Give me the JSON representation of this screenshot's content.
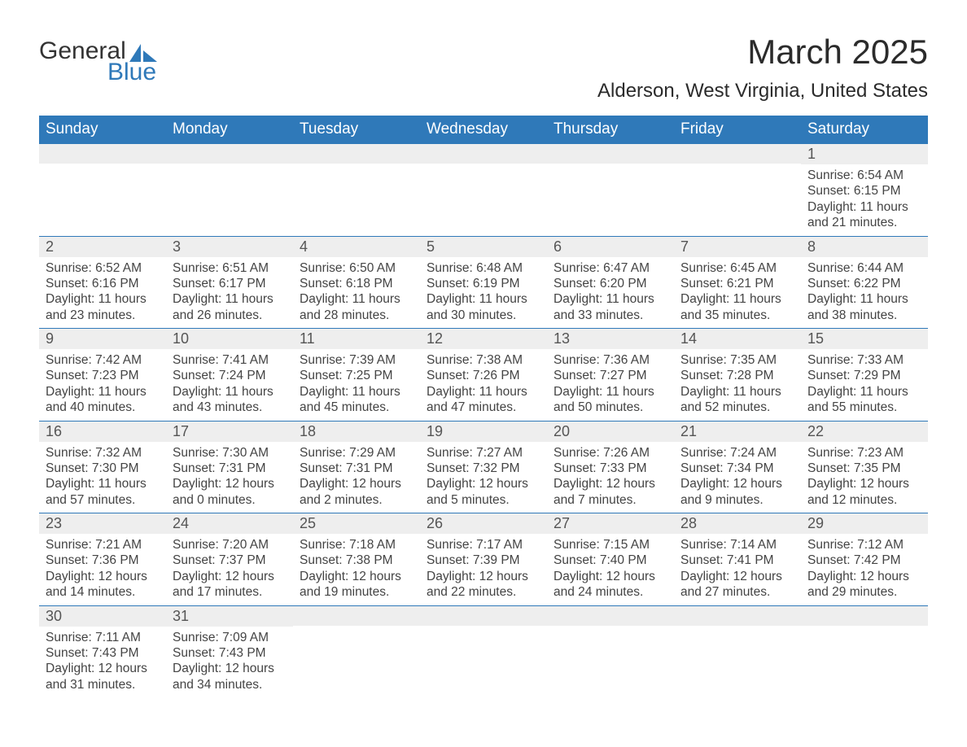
{
  "logo": {
    "text1": "General",
    "text2": "Blue",
    "accent": "#2f79b9"
  },
  "title": "March 2025",
  "location": "Alderson, West Virginia, United States",
  "colors": {
    "header_bg": "#2f79b9",
    "header_text": "#ffffff",
    "daynum_bg": "#eeeeee",
    "row_divider": "#2f79b9"
  },
  "columns": [
    "Sunday",
    "Monday",
    "Tuesday",
    "Wednesday",
    "Thursday",
    "Friday",
    "Saturday"
  ],
  "weeks": [
    [
      null,
      null,
      null,
      null,
      null,
      null,
      {
        "n": "1",
        "sr": "6:54 AM",
        "ss": "6:15 PM",
        "dh": "11",
        "dm": "21"
      }
    ],
    [
      {
        "n": "2",
        "sr": "6:52 AM",
        "ss": "6:16 PM",
        "dh": "11",
        "dm": "23"
      },
      {
        "n": "3",
        "sr": "6:51 AM",
        "ss": "6:17 PM",
        "dh": "11",
        "dm": "26"
      },
      {
        "n": "4",
        "sr": "6:50 AM",
        "ss": "6:18 PM",
        "dh": "11",
        "dm": "28"
      },
      {
        "n": "5",
        "sr": "6:48 AM",
        "ss": "6:19 PM",
        "dh": "11",
        "dm": "30"
      },
      {
        "n": "6",
        "sr": "6:47 AM",
        "ss": "6:20 PM",
        "dh": "11",
        "dm": "33"
      },
      {
        "n": "7",
        "sr": "6:45 AM",
        "ss": "6:21 PM",
        "dh": "11",
        "dm": "35"
      },
      {
        "n": "8",
        "sr": "6:44 AM",
        "ss": "6:22 PM",
        "dh": "11",
        "dm": "38"
      }
    ],
    [
      {
        "n": "9",
        "sr": "7:42 AM",
        "ss": "7:23 PM",
        "dh": "11",
        "dm": "40"
      },
      {
        "n": "10",
        "sr": "7:41 AM",
        "ss": "7:24 PM",
        "dh": "11",
        "dm": "43"
      },
      {
        "n": "11",
        "sr": "7:39 AM",
        "ss": "7:25 PM",
        "dh": "11",
        "dm": "45"
      },
      {
        "n": "12",
        "sr": "7:38 AM",
        "ss": "7:26 PM",
        "dh": "11",
        "dm": "47"
      },
      {
        "n": "13",
        "sr": "7:36 AM",
        "ss": "7:27 PM",
        "dh": "11",
        "dm": "50"
      },
      {
        "n": "14",
        "sr": "7:35 AM",
        "ss": "7:28 PM",
        "dh": "11",
        "dm": "52"
      },
      {
        "n": "15",
        "sr": "7:33 AM",
        "ss": "7:29 PM",
        "dh": "11",
        "dm": "55"
      }
    ],
    [
      {
        "n": "16",
        "sr": "7:32 AM",
        "ss": "7:30 PM",
        "dh": "11",
        "dm": "57"
      },
      {
        "n": "17",
        "sr": "7:30 AM",
        "ss": "7:31 PM",
        "dh": "12",
        "dm": "0"
      },
      {
        "n": "18",
        "sr": "7:29 AM",
        "ss": "7:31 PM",
        "dh": "12",
        "dm": "2"
      },
      {
        "n": "19",
        "sr": "7:27 AM",
        "ss": "7:32 PM",
        "dh": "12",
        "dm": "5"
      },
      {
        "n": "20",
        "sr": "7:26 AM",
        "ss": "7:33 PM",
        "dh": "12",
        "dm": "7"
      },
      {
        "n": "21",
        "sr": "7:24 AM",
        "ss": "7:34 PM",
        "dh": "12",
        "dm": "9"
      },
      {
        "n": "22",
        "sr": "7:23 AM",
        "ss": "7:35 PM",
        "dh": "12",
        "dm": "12"
      }
    ],
    [
      {
        "n": "23",
        "sr": "7:21 AM",
        "ss": "7:36 PM",
        "dh": "12",
        "dm": "14"
      },
      {
        "n": "24",
        "sr": "7:20 AM",
        "ss": "7:37 PM",
        "dh": "12",
        "dm": "17"
      },
      {
        "n": "25",
        "sr": "7:18 AM",
        "ss": "7:38 PM",
        "dh": "12",
        "dm": "19"
      },
      {
        "n": "26",
        "sr": "7:17 AM",
        "ss": "7:39 PM",
        "dh": "12",
        "dm": "22"
      },
      {
        "n": "27",
        "sr": "7:15 AM",
        "ss": "7:40 PM",
        "dh": "12",
        "dm": "24"
      },
      {
        "n": "28",
        "sr": "7:14 AM",
        "ss": "7:41 PM",
        "dh": "12",
        "dm": "27"
      },
      {
        "n": "29",
        "sr": "7:12 AM",
        "ss": "7:42 PM",
        "dh": "12",
        "dm": "29"
      }
    ],
    [
      {
        "n": "30",
        "sr": "7:11 AM",
        "ss": "7:43 PM",
        "dh": "12",
        "dm": "31"
      },
      {
        "n": "31",
        "sr": "7:09 AM",
        "ss": "7:43 PM",
        "dh": "12",
        "dm": "34"
      },
      null,
      null,
      null,
      null,
      null
    ]
  ],
  "labels": {
    "sunrise": "Sunrise: ",
    "sunset": "Sunset: ",
    "daylight_pre": "Daylight: ",
    "hours": " hours",
    "and": "and ",
    "minutes": " minutes."
  }
}
